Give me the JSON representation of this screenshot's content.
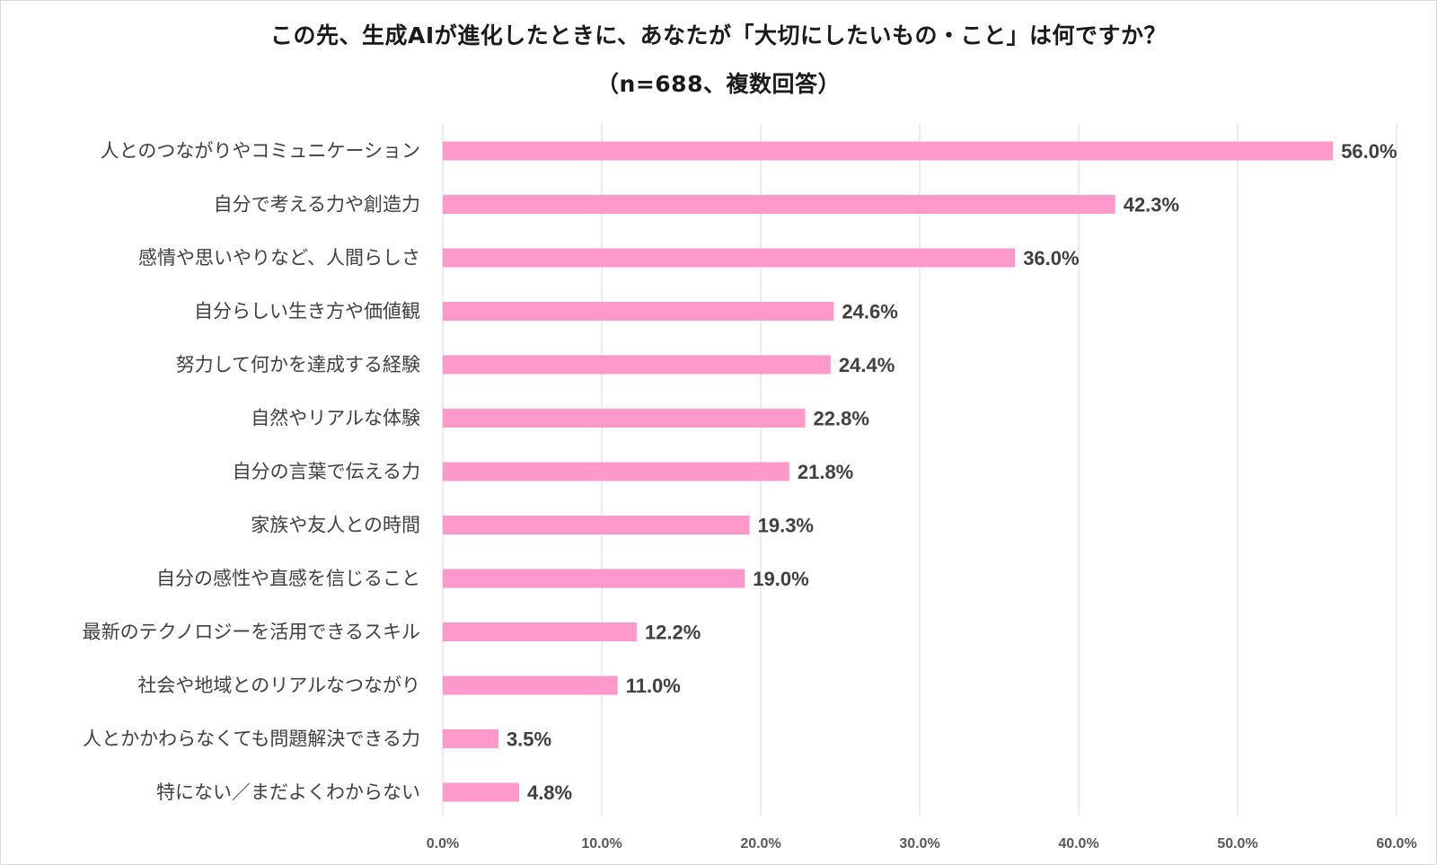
{
  "chart_data": {
    "type": "bar",
    "orientation": "horizontal",
    "title": "この先、生成AIが進化したときに、あなたが「大切にしたいもの・こと」は何ですか？",
    "subtitle": "（n=688、複数回答）",
    "categories": [
      "人とのつながりやコミュニケーション",
      "自分で考える力や創造力",
      "感情や思いやりなど、人間らしさ",
      "自分らしい生き方や価値観",
      "努力して何かを達成する経験",
      "自然やリアルな体験",
      "自分の言葉で伝える力",
      "家族や友人との時間",
      "自分の感性や直感を信じること",
      "最新のテクノロジーを活用できるスキル",
      "社会や地域とのリアルなつながり",
      "人とかかわらなくても問題解決できる力",
      "特にない／まだよくわからない"
    ],
    "values": [
      56.0,
      42.3,
      36.0,
      24.6,
      24.4,
      22.8,
      21.8,
      19.3,
      19.0,
      12.2,
      11.0,
      3.5,
      4.8
    ],
    "value_labels": [
      "56.0%",
      "42.3%",
      "36.0%",
      "24.6%",
      "24.4%",
      "22.8%",
      "21.8%",
      "19.3%",
      "19.0%",
      "12.2%",
      "11.0%",
      "3.5%",
      "4.8%"
    ],
    "xlim": [
      0,
      60
    ],
    "xticks": [
      "0.0%",
      "10.0%",
      "20.0%",
      "30.0%",
      "40.0%",
      "50.0%",
      "60.0%"
    ],
    "xlabel": "",
    "ylabel": "",
    "grid": "vertical",
    "legend": "none",
    "bar_color": "#ff99cc",
    "grid_color": "#d9d9d9"
  }
}
